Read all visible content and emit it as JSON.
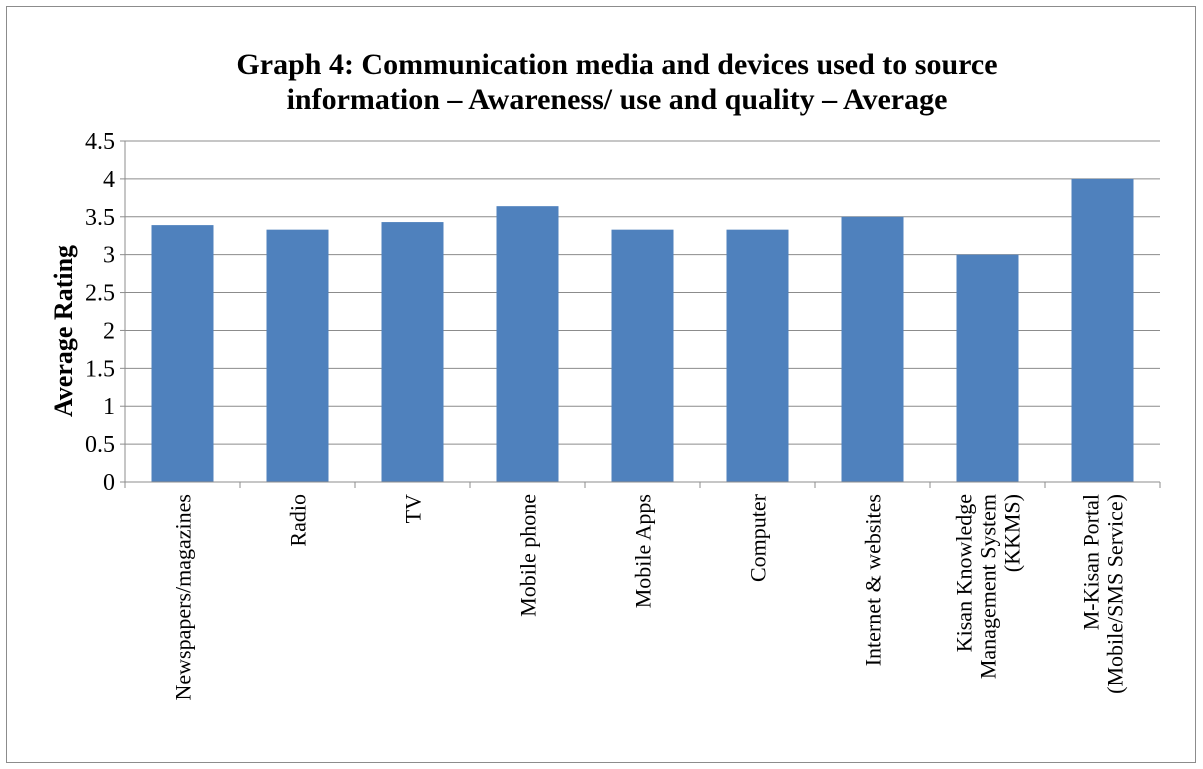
{
  "chart_data": {
    "type": "bar",
    "title_lines": [
      "Graph 4: Communication media and devices used to source",
      "information – Awareness/ use and quality – Average"
    ],
    "xlabel": "",
    "ylabel": "Average Rating",
    "ylim": [
      0,
      4.5
    ],
    "yticks": [
      "0",
      "0.5",
      "1",
      "1.5",
      "2",
      "2.5",
      "3",
      "3.5",
      "4",
      "4.5"
    ],
    "grid": true,
    "legend": "none",
    "bar_color": "#4f81bd",
    "categories": [
      [
        "Newspapers/magazines"
      ],
      [
        "Radio"
      ],
      [
        "TV"
      ],
      [
        "Mobile phone"
      ],
      [
        "Mobile Apps"
      ],
      [
        "Computer"
      ],
      [
        "Internet & websites"
      ],
      [
        "Kisan Knowledge",
        "Management System",
        "(KKMS)"
      ],
      [
        "M-Kisan Portal",
        "(Mobile/SMS Service)"
      ]
    ],
    "values": [
      3.39,
      3.33,
      3.43,
      3.64,
      3.33,
      3.33,
      3.5,
      3.0,
      4.0
    ]
  }
}
